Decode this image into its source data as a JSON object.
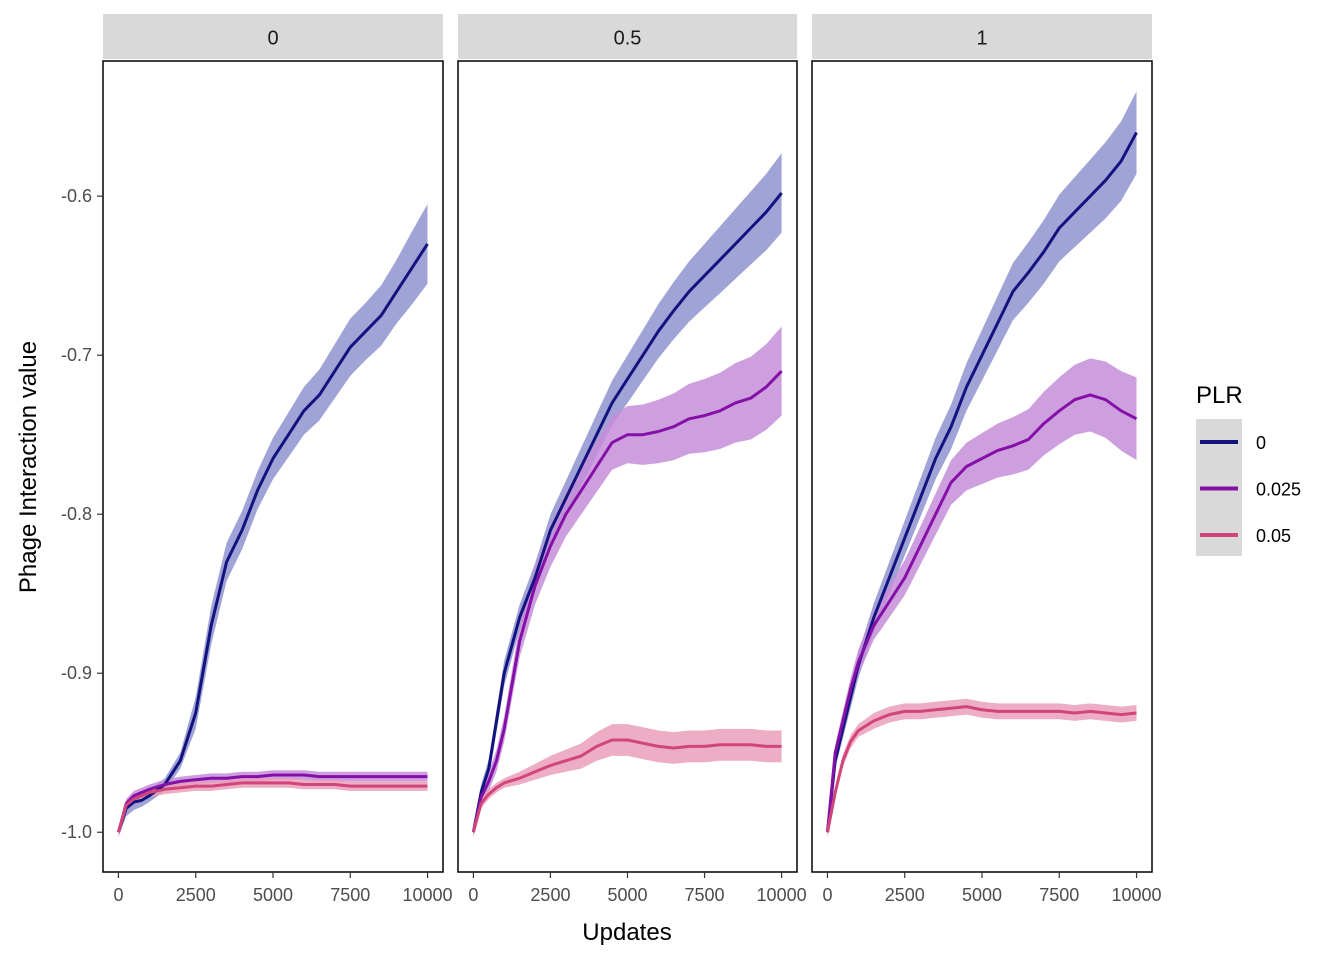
{
  "chart_data": {
    "type": "line",
    "xlabel": "Updates",
    "ylabel": "Phage Interaction value",
    "xlim": [
      -500,
      10500
    ],
    "ylim": [
      -1.025,
      -0.515
    ],
    "xticks": [
      0,
      2500,
      5000,
      7500,
      10000
    ],
    "xtick_labels": [
      "0",
      "2500",
      "5000",
      "7500",
      "10000"
    ],
    "yticks": [
      -1.0,
      -0.9,
      -0.8,
      -0.7,
      -0.6
    ],
    "ytick_labels": [
      "-1.0",
      "-0.9",
      "-0.8",
      "-0.7",
      "-0.6"
    ],
    "legend": {
      "title": "PLR",
      "position": "right",
      "entries": [
        {
          "label": "0",
          "color": "#13137f"
        },
        {
          "label": "0.025",
          "color": "#8510a8"
        },
        {
          "label": "0.05",
          "color": "#d1457a"
        }
      ]
    },
    "series_colors": {
      "0": "#13137f",
      "0.025": "#8510a8",
      "0.05": "#d1457a"
    },
    "ribbon_colors": {
      "0": "#8f93cf",
      "0.025": "#c58ed9",
      "0.05": "#ea9fba"
    },
    "x": [
      0,
      250,
      500,
      750,
      1000,
      1500,
      2000,
      2500,
      3000,
      3500,
      4000,
      4500,
      5000,
      5500,
      6000,
      6500,
      7000,
      7500,
      8000,
      8500,
      9000,
      9500,
      10000
    ],
    "facets": [
      {
        "label": "0",
        "series": [
          {
            "name": "0",
            "values": [
              -1.0,
              -0.985,
              -0.981,
              -0.98,
              -0.977,
              -0.97,
              -0.955,
              -0.925,
              -0.87,
              -0.83,
              -0.81,
              -0.785,
              -0.765,
              -0.75,
              -0.735,
              -0.725,
              -0.71,
              -0.695,
              -0.685,
              -0.675,
              -0.66,
              -0.645,
              -0.63
            ],
            "lower": [
              -1.003,
              -0.99,
              -0.986,
              -0.984,
              -0.981,
              -0.974,
              -0.96,
              -0.935,
              -0.882,
              -0.842,
              -0.822,
              -0.797,
              -0.778,
              -0.764,
              -0.75,
              -0.741,
              -0.727,
              -0.713,
              -0.703,
              -0.694,
              -0.68,
              -0.668,
              -0.655
            ],
            "upper": [
              -0.997,
              -0.98,
              -0.976,
              -0.976,
              -0.973,
              -0.966,
              -0.95,
              -0.915,
              -0.858,
              -0.818,
              -0.798,
              -0.773,
              -0.752,
              -0.736,
              -0.72,
              -0.709,
              -0.693,
              -0.677,
              -0.667,
              -0.656,
              -0.64,
              -0.622,
              -0.605
            ]
          },
          {
            "name": "0.025",
            "values": [
              -1.0,
              -0.982,
              -0.977,
              -0.975,
              -0.973,
              -0.97,
              -0.968,
              -0.967,
              -0.966,
              -0.966,
              -0.965,
              -0.965,
              -0.964,
              -0.964,
              -0.964,
              -0.965,
              -0.965,
              -0.965,
              -0.965,
              -0.965,
              -0.965,
              -0.965,
              -0.965
            ],
            "lower": [
              -1.002,
              -0.985,
              -0.98,
              -0.978,
              -0.976,
              -0.973,
              -0.971,
              -0.97,
              -0.969,
              -0.969,
              -0.968,
              -0.968,
              -0.967,
              -0.967,
              -0.967,
              -0.968,
              -0.968,
              -0.968,
              -0.968,
              -0.968,
              -0.968,
              -0.968,
              -0.968
            ],
            "upper": [
              -0.998,
              -0.979,
              -0.974,
              -0.972,
              -0.97,
              -0.967,
              -0.965,
              -0.964,
              -0.963,
              -0.963,
              -0.962,
              -0.962,
              -0.961,
              -0.961,
              -0.961,
              -0.962,
              -0.962,
              -0.962,
              -0.962,
              -0.962,
              -0.962,
              -0.962,
              -0.962
            ]
          },
          {
            "name": "0.05",
            "values": [
              -1.0,
              -0.983,
              -0.979,
              -0.977,
              -0.975,
              -0.973,
              -0.972,
              -0.971,
              -0.971,
              -0.97,
              -0.969,
              -0.969,
              -0.969,
              -0.969,
              -0.97,
              -0.97,
              -0.97,
              -0.971,
              -0.971,
              -0.971,
              -0.971,
              -0.971,
              -0.971
            ],
            "lower": [
              -1.002,
              -0.986,
              -0.982,
              -0.98,
              -0.978,
              -0.976,
              -0.975,
              -0.974,
              -0.974,
              -0.973,
              -0.972,
              -0.972,
              -0.972,
              -0.972,
              -0.973,
              -0.973,
              -0.973,
              -0.974,
              -0.974,
              -0.974,
              -0.974,
              -0.974,
              -0.974
            ],
            "upper": [
              -0.998,
              -0.98,
              -0.976,
              -0.974,
              -0.972,
              -0.97,
              -0.969,
              -0.968,
              -0.968,
              -0.967,
              -0.966,
              -0.966,
              -0.966,
              -0.966,
              -0.967,
              -0.967,
              -0.967,
              -0.968,
              -0.968,
              -0.968,
              -0.968,
              -0.968,
              -0.968
            ]
          }
        ]
      },
      {
        "label": "0.5",
        "series": [
          {
            "name": "0",
            "values": [
              -1.0,
              -0.975,
              -0.96,
              -0.93,
              -0.9,
              -0.865,
              -0.84,
              -0.81,
              -0.79,
              -0.77,
              -0.75,
              -0.73,
              -0.715,
              -0.7,
              -0.685,
              -0.672,
              -0.66,
              -0.65,
              -0.64,
              -0.63,
              -0.62,
              -0.61,
              -0.598
            ],
            "lower": [
              -1.003,
              -0.98,
              -0.966,
              -0.937,
              -0.908,
              -0.873,
              -0.849,
              -0.82,
              -0.801,
              -0.782,
              -0.763,
              -0.744,
              -0.73,
              -0.716,
              -0.702,
              -0.69,
              -0.679,
              -0.67,
              -0.661,
              -0.652,
              -0.643,
              -0.634,
              -0.623
            ],
            "upper": [
              -0.997,
              -0.97,
              -0.954,
              -0.923,
              -0.892,
              -0.857,
              -0.831,
              -0.8,
              -0.779,
              -0.758,
              -0.737,
              -0.716,
              -0.7,
              -0.684,
              -0.668,
              -0.654,
              -0.641,
              -0.63,
              -0.619,
              -0.608,
              -0.597,
              -0.586,
              -0.573
            ]
          },
          {
            "name": "0.025",
            "values": [
              -1.0,
              -0.978,
              -0.968,
              -0.955,
              -0.935,
              -0.88,
              -0.845,
              -0.82,
              -0.8,
              -0.785,
              -0.77,
              -0.755,
              -0.75,
              -0.75,
              -0.748,
              -0.745,
              -0.74,
              -0.738,
              -0.735,
              -0.73,
              -0.727,
              -0.72,
              -0.71
            ],
            "lower": [
              -1.003,
              -0.983,
              -0.974,
              -0.962,
              -0.943,
              -0.89,
              -0.857,
              -0.833,
              -0.814,
              -0.8,
              -0.786,
              -0.772,
              -0.768,
              -0.769,
              -0.768,
              -0.766,
              -0.762,
              -0.761,
              -0.759,
              -0.755,
              -0.753,
              -0.747,
              -0.738
            ],
            "upper": [
              -0.997,
              -0.973,
              -0.962,
              -0.948,
              -0.927,
              -0.87,
              -0.833,
              -0.807,
              -0.786,
              -0.77,
              -0.754,
              -0.738,
              -0.732,
              -0.731,
              -0.728,
              -0.724,
              -0.718,
              -0.715,
              -0.711,
              -0.705,
              -0.701,
              -0.693,
              -0.682
            ]
          },
          {
            "name": "0.05",
            "values": [
              -1.0,
              -0.982,
              -0.976,
              -0.972,
              -0.969,
              -0.966,
              -0.962,
              -0.958,
              -0.955,
              -0.952,
              -0.946,
              -0.942,
              -0.942,
              -0.944,
              -0.946,
              -0.947,
              -0.946,
              -0.946,
              -0.945,
              -0.945,
              -0.945,
              -0.946,
              -0.946
            ],
            "lower": [
              -1.003,
              -0.985,
              -0.979,
              -0.975,
              -0.972,
              -0.97,
              -0.967,
              -0.964,
              -0.962,
              -0.96,
              -0.955,
              -0.952,
              -0.952,
              -0.954,
              -0.956,
              -0.957,
              -0.956,
              -0.956,
              -0.955,
              -0.955,
              -0.955,
              -0.956,
              -0.956
            ],
            "upper": [
              -0.997,
              -0.979,
              -0.973,
              -0.969,
              -0.966,
              -0.962,
              -0.957,
              -0.952,
              -0.948,
              -0.944,
              -0.937,
              -0.932,
              -0.932,
              -0.934,
              -0.936,
              -0.937,
              -0.936,
              -0.936,
              -0.935,
              -0.935,
              -0.935,
              -0.936,
              -0.936
            ]
          }
        ]
      },
      {
        "label": "1",
        "series": [
          {
            "name": "0",
            "values": [
              -1.0,
              -0.955,
              -0.935,
              -0.915,
              -0.895,
              -0.865,
              -0.84,
              -0.815,
              -0.79,
              -0.765,
              -0.745,
              -0.72,
              -0.7,
              -0.68,
              -0.66,
              -0.648,
              -0.635,
              -0.62,
              -0.61,
              -0.6,
              -0.59,
              -0.578,
              -0.56
            ],
            "lower": [
              -1.003,
              -0.96,
              -0.941,
              -0.922,
              -0.903,
              -0.874,
              -0.85,
              -0.826,
              -0.802,
              -0.778,
              -0.759,
              -0.735,
              -0.716,
              -0.697,
              -0.678,
              -0.667,
              -0.655,
              -0.641,
              -0.632,
              -0.623,
              -0.614,
              -0.603,
              -0.586
            ],
            "upper": [
              -0.997,
              -0.95,
              -0.929,
              -0.908,
              -0.887,
              -0.856,
              -0.83,
              -0.804,
              -0.778,
              -0.752,
              -0.731,
              -0.705,
              -0.684,
              -0.663,
              -0.642,
              -0.629,
              -0.615,
              -0.599,
              -0.588,
              -0.577,
              -0.566,
              -0.553,
              -0.534
            ]
          },
          {
            "name": "0.025",
            "values": [
              -1.0,
              -0.95,
              -0.93,
              -0.91,
              -0.893,
              -0.87,
              -0.855,
              -0.84,
              -0.82,
              -0.8,
              -0.78,
              -0.77,
              -0.765,
              -0.76,
              -0.757,
              -0.753,
              -0.743,
              -0.735,
              -0.728,
              -0.725,
              -0.728,
              -0.735,
              -0.74
            ],
            "lower": [
              -1.003,
              -0.955,
              -0.936,
              -0.917,
              -0.901,
              -0.879,
              -0.865,
              -0.851,
              -0.832,
              -0.813,
              -0.794,
              -0.785,
              -0.781,
              -0.777,
              -0.775,
              -0.772,
              -0.763,
              -0.756,
              -0.75,
              -0.748,
              -0.752,
              -0.76,
              -0.766
            ],
            "upper": [
              -0.997,
              -0.945,
              -0.924,
              -0.903,
              -0.885,
              -0.861,
              -0.845,
              -0.829,
              -0.808,
              -0.787,
              -0.766,
              -0.755,
              -0.749,
              -0.743,
              -0.739,
              -0.734,
              -0.723,
              -0.714,
              -0.706,
              -0.702,
              -0.704,
              -0.71,
              -0.714
            ]
          },
          {
            "name": "0.05",
            "values": [
              -1.0,
              -0.975,
              -0.955,
              -0.943,
              -0.936,
              -0.93,
              -0.926,
              -0.924,
              -0.924,
              -0.923,
              -0.922,
              -0.921,
              -0.923,
              -0.924,
              -0.924,
              -0.924,
              -0.924,
              -0.924,
              -0.925,
              -0.924,
              -0.925,
              -0.926,
              -0.925
            ],
            "lower": [
              -1.003,
              -0.979,
              -0.959,
              -0.947,
              -0.94,
              -0.935,
              -0.931,
              -0.929,
              -0.929,
              -0.928,
              -0.927,
              -0.926,
              -0.928,
              -0.929,
              -0.929,
              -0.929,
              -0.929,
              -0.929,
              -0.93,
              -0.929,
              -0.93,
              -0.931,
              -0.93
            ],
            "upper": [
              -0.997,
              -0.971,
              -0.951,
              -0.939,
              -0.932,
              -0.925,
              -0.921,
              -0.919,
              -0.919,
              -0.918,
              -0.917,
              -0.916,
              -0.918,
              -0.919,
              -0.919,
              -0.919,
              -0.919,
              -0.919,
              -0.92,
              -0.919,
              -0.92,
              -0.921,
              -0.92
            ]
          }
        ]
      }
    ]
  }
}
